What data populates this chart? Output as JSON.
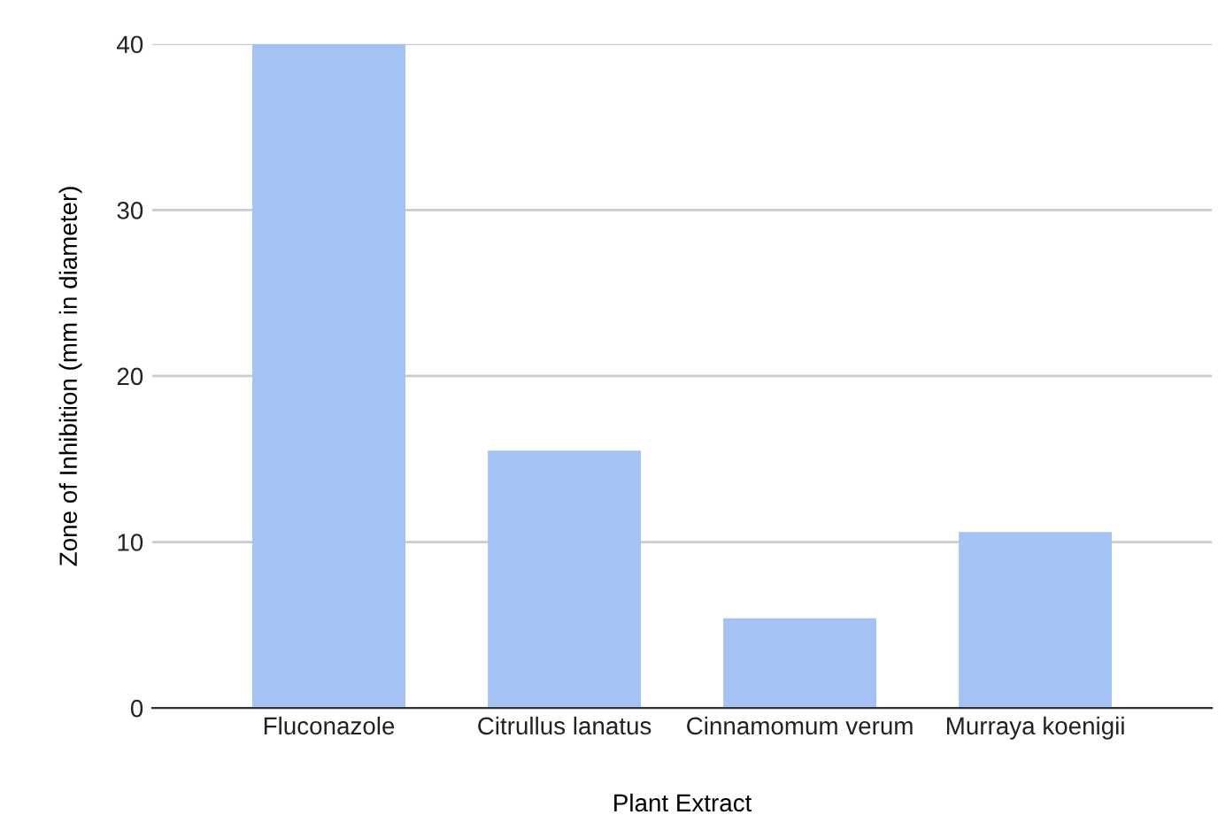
{
  "chart_data": {
    "type": "bar",
    "xlabel": "Plant Extract",
    "ylabel": "Zone of Inhibition (mm in diameter)",
    "categories": [
      "Fluconazole",
      "Citrullus lanatus",
      "Cinnamomum verum",
      "Murraya koenigii"
    ],
    "values": [
      40,
      15.5,
      5.4,
      10.6
    ],
    "color": "#a4c2f4",
    "ylim": [
      0,
      40
    ],
    "yticks": [
      0,
      10,
      20,
      30,
      40
    ],
    "grid": "y",
    "legend": false
  }
}
